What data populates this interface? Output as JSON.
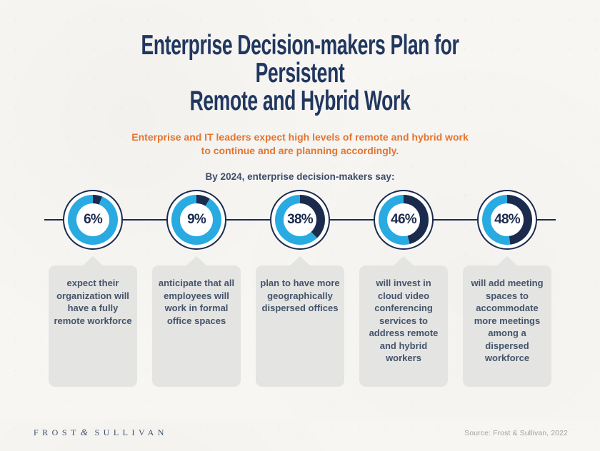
{
  "header": {
    "title_line1": "Enterprise Decision-makers Plan for Persistent",
    "title_line2": "Remote and Hybrid Work",
    "subtitle_line1": "Enterprise and IT leaders expect high levels of remote and hybrid work",
    "subtitle_line2": "to continue and are planning accordingly."
  },
  "chart_data": {
    "type": "pie",
    "subtype": "donut_multiples",
    "title": "By 2024, enterprise decision-makers say:",
    "units": "%",
    "legend_position": "none",
    "arc_start": "12 o'clock, value arc sweeps clockwise",
    "items": [
      {
        "value": 6,
        "display": "6%",
        "label": "expect their organization will have a fully remote workforce"
      },
      {
        "value": 9,
        "display": "9%",
        "label": "anticipate that all employees will work in formal office spaces"
      },
      {
        "value": 38,
        "display": "38%",
        "label": "plan to have more geographically dispersed offices"
      },
      {
        "value": 46,
        "display": "46%",
        "label": "will invest in cloud video conferencing services to address remote and hybrid workers"
      },
      {
        "value": 48,
        "display": "48%",
        "label": "will add meeting spaces to accommodate more meetings among a dispersed workforce"
      }
    ],
    "colors": {
      "value_arc": "#1b2b4e",
      "remainder_arc": "#29abe2",
      "center": "#ffffff"
    }
  },
  "footer": {
    "logo_word1": "FROST",
    "logo_ampersand": "&",
    "logo_word2": "SULLIVAN",
    "source": "Source: Frost & Sullivan, 2022"
  },
  "colors": {
    "title_navy": "#21375f",
    "accent_orange": "#e4742f",
    "label_navy": "#3e4e6b",
    "donut_blue": "#29abe2",
    "donut_navy": "#1b2b4e",
    "card_bg": "#e4e4e2",
    "card_text": "#44546a",
    "paper_bg": "#f7f6f3",
    "logo_navy": "#3a4f6e",
    "source_gray": "#a3a2a0"
  }
}
